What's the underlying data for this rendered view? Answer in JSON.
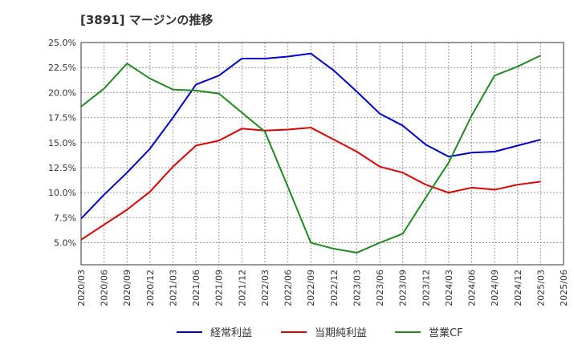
{
  "chart_data": {
    "type": "line",
    "title": "[3891]  マージンの推移",
    "x": [
      "2020/03",
      "2020/06",
      "2020/09",
      "2020/12",
      "2021/03",
      "2021/06",
      "2021/09",
      "2021/12",
      "2022/03",
      "2022/06",
      "2022/09",
      "2022/12",
      "2023/03",
      "2023/06",
      "2023/09",
      "2023/12",
      "2024/03",
      "2024/06",
      "2024/09",
      "2024/12",
      "2025/03",
      "2025/06"
    ],
    "yticks": [
      "5.0%",
      "7.5%",
      "10.0%",
      "12.5%",
      "15.0%",
      "17.5%",
      "20.0%",
      "22.5%",
      "25.0%"
    ],
    "ylim": [
      2.8,
      25.0
    ],
    "grid": true,
    "legend_position": "bottom",
    "series": [
      {
        "name": "経常利益",
        "color": "#0000cc",
        "values": [
          7.4,
          9.8,
          12.0,
          14.4,
          17.5,
          20.8,
          21.7,
          23.4,
          23.4,
          23.6,
          23.9,
          22.2,
          20.1,
          17.9,
          16.7,
          14.8,
          13.6,
          14.0,
          14.1,
          14.7,
          15.3,
          null
        ]
      },
      {
        "name": "当期純利益",
        "color": "#dd0000",
        "values": [
          5.3,
          6.8,
          8.3,
          10.1,
          12.6,
          14.7,
          15.2,
          16.4,
          16.2,
          16.3,
          16.5,
          15.3,
          14.1,
          12.6,
          12.0,
          10.8,
          10.0,
          10.5,
          10.3,
          10.8,
          11.1,
          null
        ]
      },
      {
        "name": "営業CF",
        "color": "#228822",
        "values": [
          18.6,
          20.4,
          22.9,
          21.4,
          20.3,
          20.2,
          19.9,
          18.0,
          16.1,
          10.6,
          5.0,
          4.4,
          4.0,
          5.0,
          5.9,
          9.5,
          13.0,
          17.7,
          21.7,
          22.6,
          23.7,
          null
        ]
      }
    ]
  }
}
